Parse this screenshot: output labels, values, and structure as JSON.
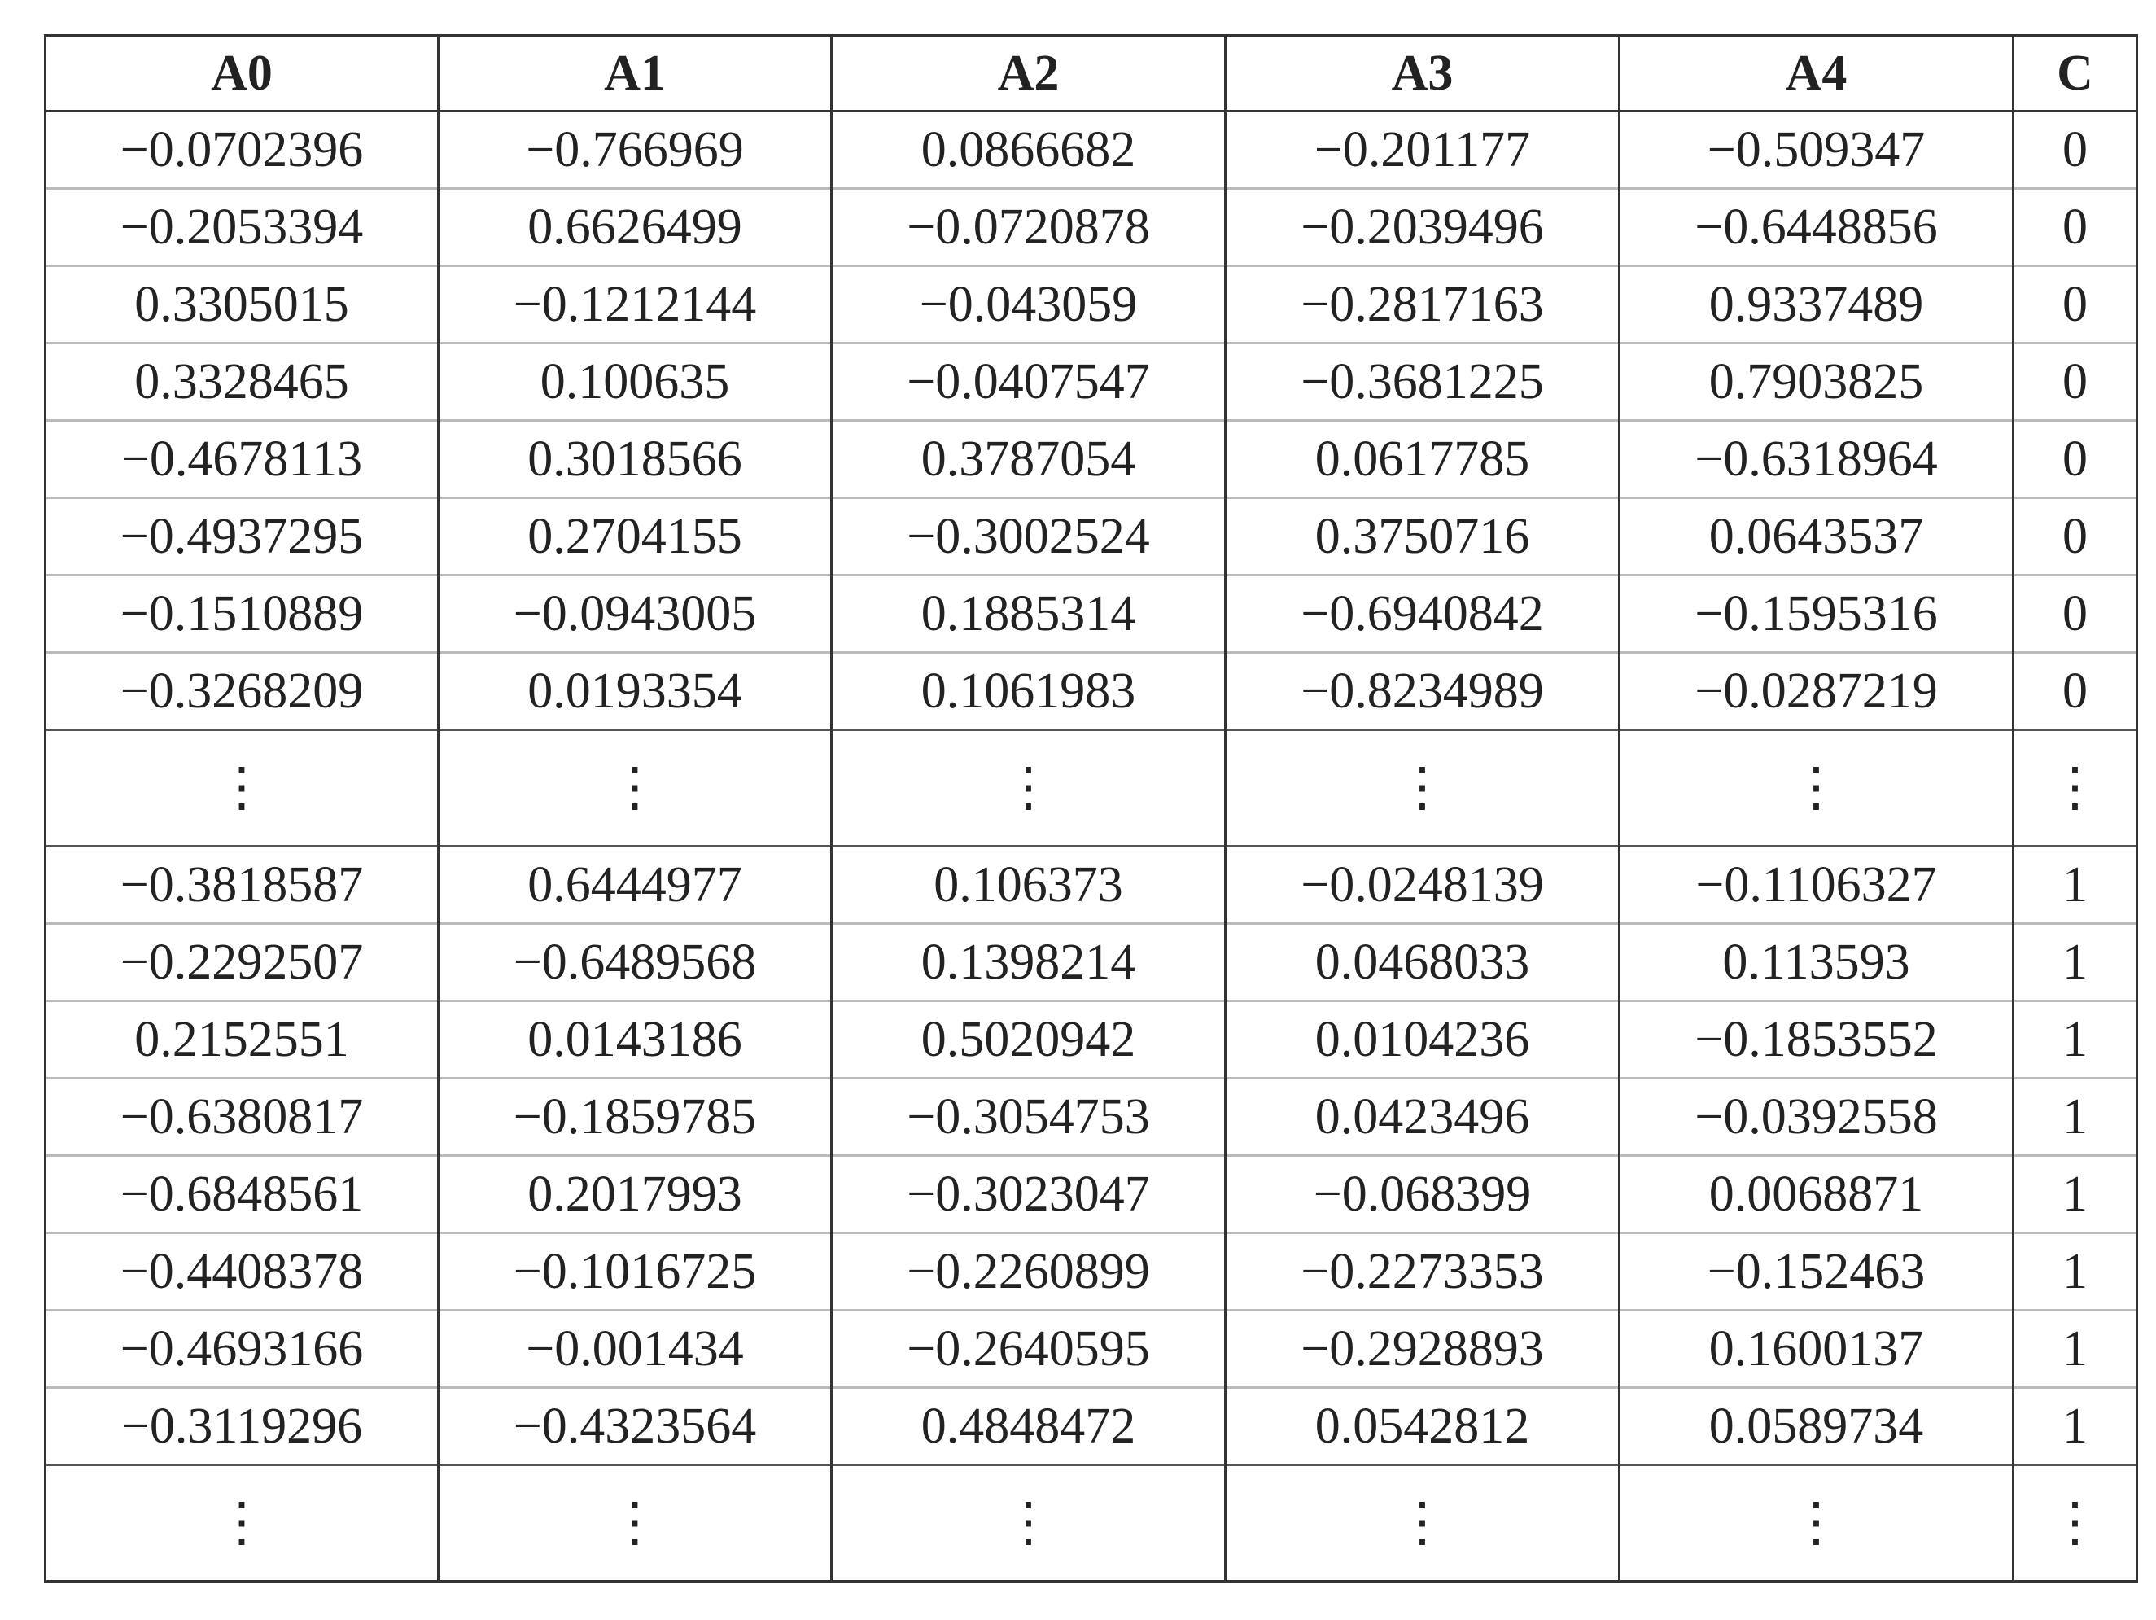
{
  "table": {
    "header": [
      "A0",
      "A1",
      "A2",
      "A3",
      "A4",
      "C"
    ],
    "rows": [
      [
        "−0.0702396",
        "−0.766969",
        "0.0866682",
        "−0.201177",
        "−0.509347",
        "0"
      ],
      [
        "−0.2053394",
        "0.6626499",
        "−0.0720878",
        "−0.2039496",
        "−0.6448856",
        "0"
      ],
      [
        "0.3305015",
        "−0.1212144",
        "−0.043059",
        "−0.2817163",
        "0.9337489",
        "0"
      ],
      [
        "0.3328465",
        "0.100635",
        "−0.0407547",
        "−0.3681225",
        "0.7903825",
        "0"
      ],
      [
        "−0.4678113",
        "0.3018566",
        "0.3787054",
        "0.0617785",
        "−0.6318964",
        "0"
      ],
      [
        "−0.4937295",
        "0.2704155",
        "−0.3002524",
        "0.3750716",
        "0.0643537",
        "0"
      ],
      [
        "−0.1510889",
        "−0.0943005",
        "0.1885314",
        "−0.6940842",
        "−0.1595316",
        "0"
      ],
      [
        "−0.3268209",
        "0.0193354",
        "0.1061983",
        "−0.8234989",
        "−0.0287219",
        "0"
      ],
      [
        "⋮",
        "⋮",
        "⋮",
        "⋮",
        "⋮",
        "⋮"
      ],
      [
        "−0.3818587",
        "0.6444977",
        "0.106373",
        "−0.0248139",
        "−0.1106327",
        "1"
      ],
      [
        "−0.2292507",
        "−0.6489568",
        "0.1398214",
        "0.0468033",
        "0.113593",
        "1"
      ],
      [
        "0.2152551",
        "0.0143186",
        "0.5020942",
        "0.0104236",
        "−0.1853552",
        "1"
      ],
      [
        "−0.6380817",
        "−0.1859785",
        "−0.3054753",
        "0.0423496",
        "−0.0392558",
        "1"
      ],
      [
        "−0.6848561",
        "0.2017993",
        "−0.3023047",
        "−0.068399",
        "0.0068871",
        "1"
      ],
      [
        "−0.4408378",
        "−0.1016725",
        "−0.2260899",
        "−0.2273353",
        "−0.152463",
        "1"
      ],
      [
        "−0.4693166",
        "−0.001434",
        "−0.2640595",
        "−0.2928893",
        "0.1600137",
        "1"
      ],
      [
        "−0.3119296",
        "−0.4323564",
        "0.4848472",
        "0.0542812",
        "0.0589734",
        "1"
      ],
      [
        "⋮",
        "⋮",
        "⋮",
        "⋮",
        "⋮",
        "⋮"
      ]
    ]
  }
}
